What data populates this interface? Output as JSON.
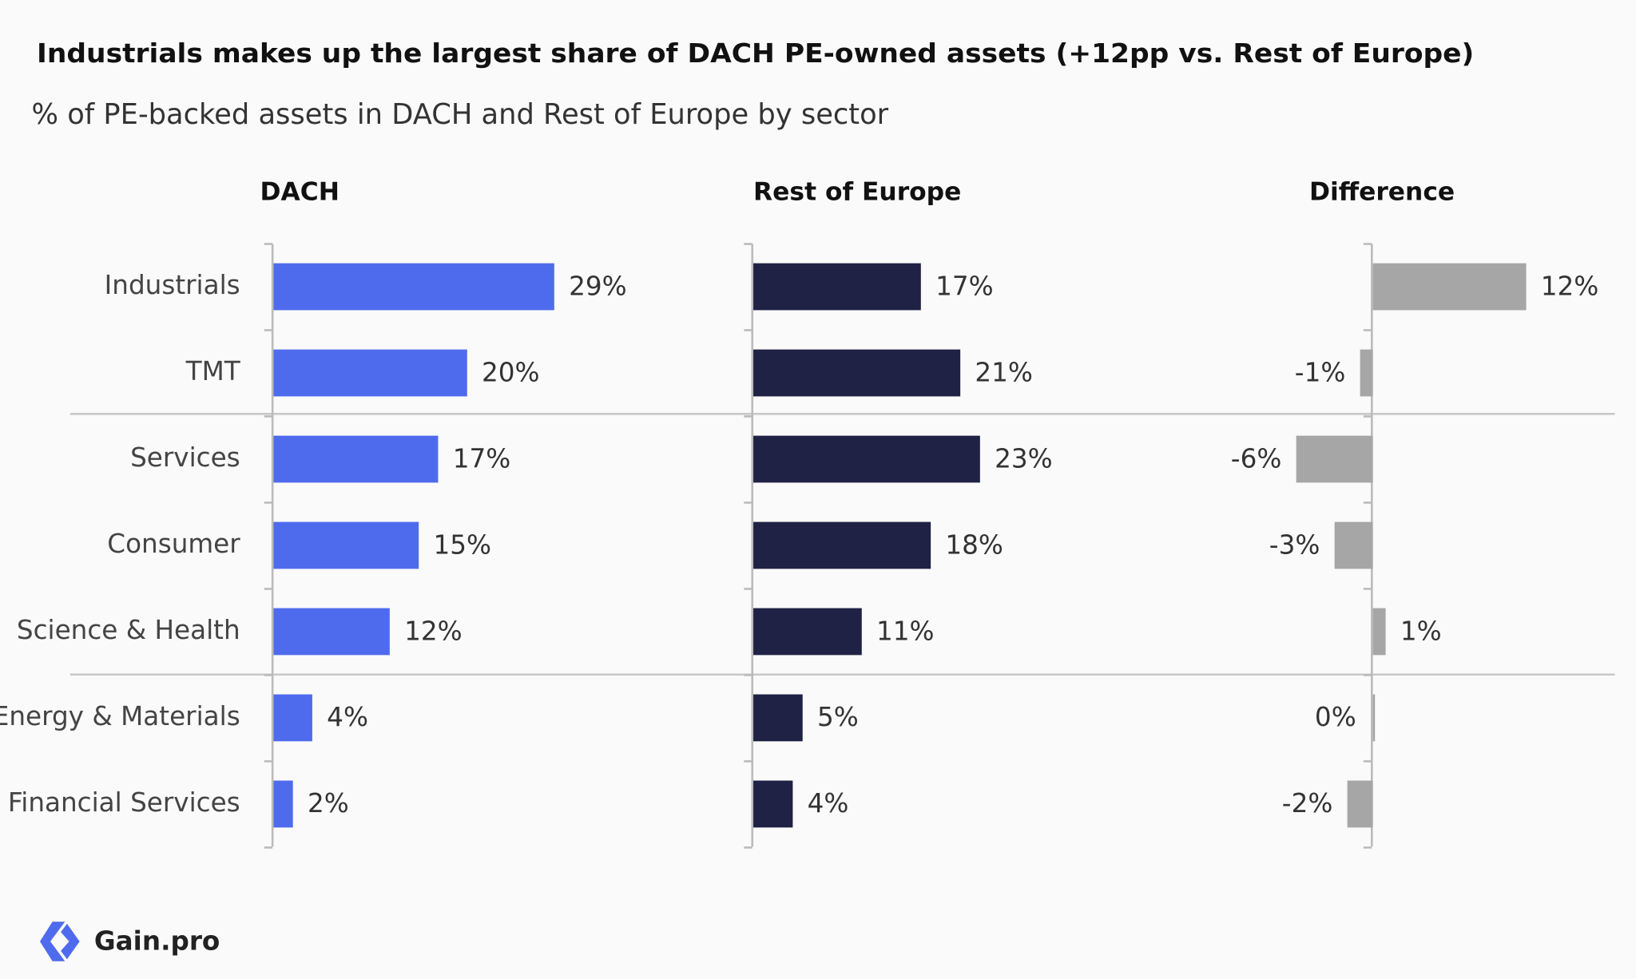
{
  "title": "Industrials makes up the largest share of DACH PE-owned assets (+12pp vs. Rest of Europe)",
  "subtitle": "% of PE-backed assets in DACH and Rest of Europe by sector",
  "brand": "Gain.pro",
  "chart_data": [
    {
      "type": "bar",
      "title": "DACH",
      "color": "#4f6bed",
      "categories": [
        "Industrials",
        "TMT",
        "Services",
        "Consumer",
        "Science & Health",
        "Energy & Materials",
        "Financial Services"
      ],
      "values": [
        29,
        20,
        17,
        15,
        12,
        4,
        2
      ],
      "value_labels": [
        "29%",
        "20%",
        "17%",
        "15%",
        "12%",
        "4%",
        "2%"
      ]
    },
    {
      "type": "bar",
      "title": "Rest of Europe",
      "color": "#1f2244",
      "values": [
        17,
        21,
        23,
        18,
        11,
        5,
        4
      ],
      "value_labels": [
        "17%",
        "21%",
        "23%",
        "18%",
        "11%",
        "5%",
        "4%"
      ]
    },
    {
      "type": "bar",
      "title": "Difference",
      "color": "#a6a6a6",
      "values": [
        12,
        -1,
        -6,
        -3,
        1,
        0,
        -2
      ],
      "value_labels": [
        "12%",
        "-1%",
        "-6%",
        "-3%",
        "1%",
        "0%",
        "-2%"
      ]
    }
  ]
}
